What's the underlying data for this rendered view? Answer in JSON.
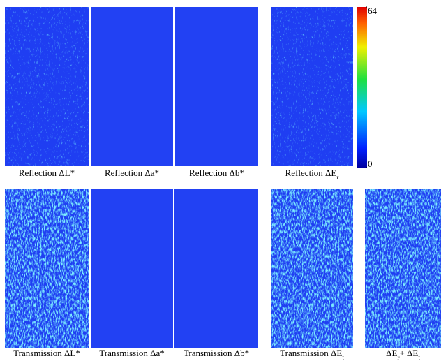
{
  "figure": {
    "rows": [
      {
        "panels": [
          {
            "caption": [
              {
                "text": "Reflection ΔL*"
              }
            ]
          },
          {
            "caption": [
              {
                "text": "Reflection Δa*"
              }
            ]
          },
          {
            "caption": [
              {
                "text": "Reflection Δb*"
              }
            ]
          },
          {
            "caption": [
              {
                "text": "Reflection ΔE"
              },
              {
                "text": "r",
                "sub": true
              }
            ]
          }
        ]
      },
      {
        "panels": [
          {
            "caption": [
              {
                "text": "Transmission ΔL*"
              }
            ]
          },
          {
            "caption": [
              {
                "text": "Transmission Δa*"
              }
            ]
          },
          {
            "caption": [
              {
                "text": "Transmission Δb*"
              }
            ]
          },
          {
            "caption": [
              {
                "text": "Transmission ΔE"
              },
              {
                "text": "t",
                "sub": true
              }
            ]
          },
          {
            "caption": [
              {
                "text": "ΔE"
              },
              {
                "text": "r",
                "sub": true
              },
              {
                "text": "+ ΔE"
              },
              {
                "text": "t",
                "sub": true
              }
            ]
          }
        ]
      }
    ],
    "colorbar": {
      "range": [
        0,
        64
      ],
      "ticks": [
        0,
        64
      ]
    }
  }
}
